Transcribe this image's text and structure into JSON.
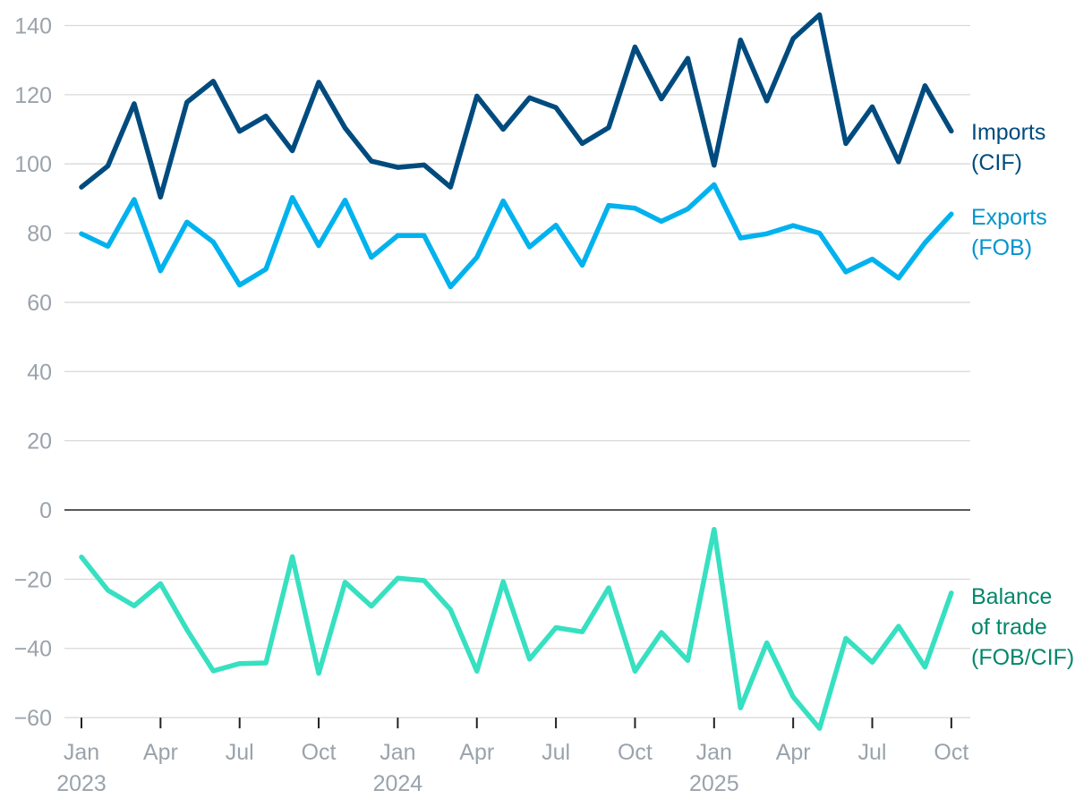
{
  "chart_data": {
    "type": "line",
    "title": "",
    "xlabel": "",
    "ylabel": "",
    "ylim": [
      -60,
      145
    ],
    "yticks": [
      140,
      120,
      100,
      80,
      60,
      40,
      20,
      0,
      -20,
      -40,
      -60
    ],
    "ytick_labels": [
      "140",
      "120",
      "100",
      "80",
      "60",
      "40",
      "20",
      "0",
      "−20",
      "−40",
      "−60"
    ],
    "xticks": [
      {
        "index": 0,
        "month": "Jan",
        "year": "2023"
      },
      {
        "index": 3,
        "month": "Apr",
        "year": ""
      },
      {
        "index": 6,
        "month": "Jul",
        "year": ""
      },
      {
        "index": 9,
        "month": "Oct",
        "year": ""
      },
      {
        "index": 12,
        "month": "Jan",
        "year": "2024"
      },
      {
        "index": 15,
        "month": "Apr",
        "year": ""
      },
      {
        "index": 18,
        "month": "Jul",
        "year": ""
      },
      {
        "index": 21,
        "month": "Oct",
        "year": ""
      },
      {
        "index": 24,
        "month": "Jan",
        "year": "2025"
      },
      {
        "index": 27,
        "month": "Apr",
        "year": ""
      },
      {
        "index": 30,
        "month": "Jul",
        "year": ""
      },
      {
        "index": 33,
        "month": "Oct",
        "year": ""
      }
    ],
    "x_start": "Jan 2023",
    "x_end": "Oct 2025",
    "series": [
      {
        "name": "Imports (CIF)",
        "label_lines": [
          "Imports",
          "(CIF)"
        ],
        "color": "#004b7e",
        "values": [
          93.3,
          99.4,
          117.4,
          90.4,
          117.8,
          123.9,
          109.4,
          113.8,
          103.8,
          123.6,
          110.4,
          100.8,
          99.0,
          99.7,
          93.3,
          119.6,
          110.0,
          119.1,
          116.3,
          105.9,
          110.5,
          133.8,
          118.8,
          130.5,
          99.6,
          135.8,
          118.2,
          136.2,
          143.1,
          105.9,
          116.5,
          100.6,
          122.6,
          109.5
        ]
      },
      {
        "name": "Exports (FOB)",
        "label_lines": [
          "Exports",
          "(FOB)"
        ],
        "color": "#00b2ee",
        "values": [
          79.8,
          76.2,
          89.7,
          69.1,
          83.2,
          77.4,
          65.0,
          69.6,
          90.3,
          76.4,
          89.5,
          73.0,
          79.3,
          79.3,
          64.5,
          73.0,
          89.3,
          76.0,
          82.3,
          70.7,
          88.0,
          87.2,
          83.4,
          87.0,
          94.0,
          78.6,
          79.8,
          82.2,
          80.0,
          68.8,
          72.5,
          67.0,
          77.2,
          85.5
        ]
      },
      {
        "name": "Balance of trade (FOB/CIF)",
        "label_lines": [
          "Balance",
          "of trade",
          "(FOB/CIF)"
        ],
        "color": "#36e0c0",
        "label_color": "#00876c",
        "values": [
          -13.6,
          -23.2,
          -27.7,
          -21.3,
          -34.6,
          -46.5,
          -44.4,
          -44.2,
          -13.5,
          -47.2,
          -20.9,
          -27.8,
          -19.7,
          -20.4,
          -28.8,
          -46.6,
          -20.7,
          -43.1,
          -34.0,
          -35.2,
          -22.5,
          -46.6,
          -35.4,
          -43.5,
          -5.6,
          -57.2,
          -38.4,
          -54.0,
          -63.1,
          -37.1,
          -44.0,
          -33.6,
          -45.4,
          -24.0
        ]
      }
    ]
  }
}
